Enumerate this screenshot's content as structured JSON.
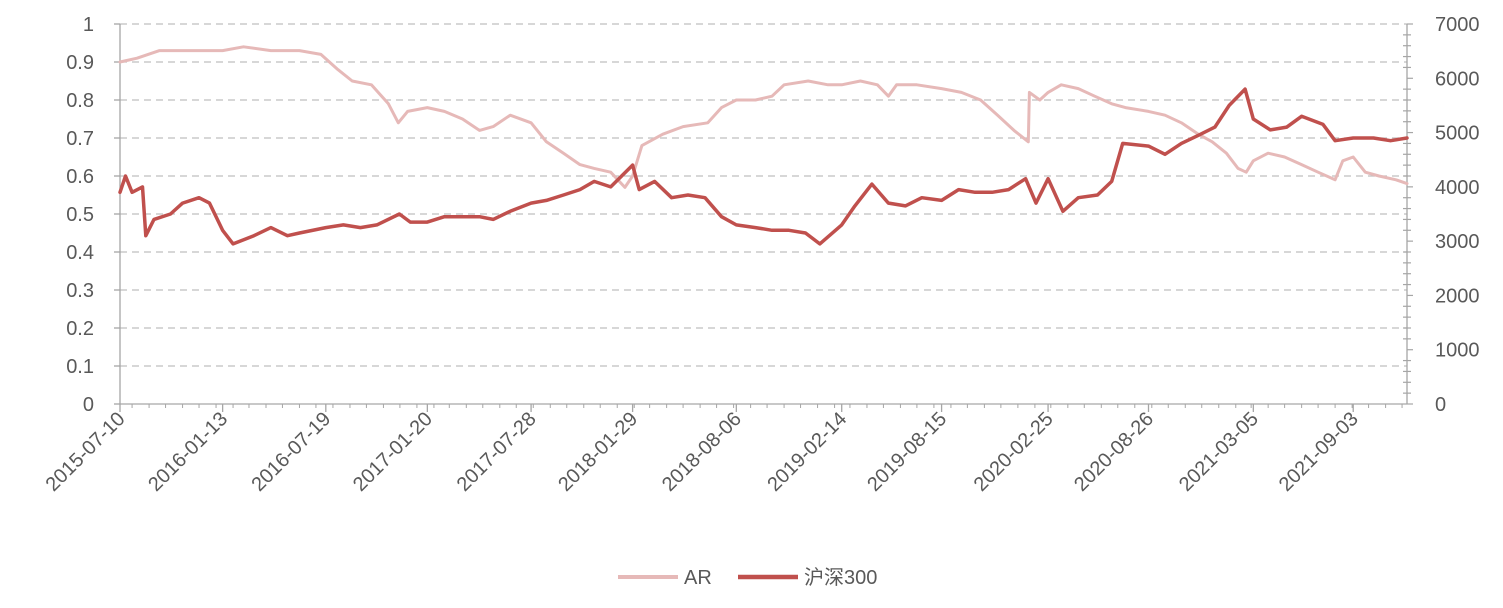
{
  "chart_data": {
    "type": "line",
    "title": "",
    "x_tick_labels": [
      "2015-07-10",
      "2016-01-13",
      "2016-07-19",
      "2017-01-20",
      "2017-07-28",
      "2018-01-29",
      "2018-08-06",
      "2019-02-14",
      "2019-08-15",
      "2020-02-25",
      "2020-08-26",
      "2021-03-05",
      "2021-09-03"
    ],
    "x_range": [
      "2015-07-10",
      "2021-12-10"
    ],
    "y_left": {
      "range": [
        0,
        1
      ],
      "ticks": [
        "0",
        "0.1",
        "0.2",
        "0.3",
        "0.4",
        "0.5",
        "0.6",
        "0.7",
        "0.8",
        "0.9",
        "1"
      ]
    },
    "y_right": {
      "range": [
        0,
        7000
      ],
      "ticks": [
        "0",
        "1000",
        "2000",
        "3000",
        "4000",
        "5000",
        "6000",
        "7000"
      ]
    },
    "grid": true,
    "legend_position": "bottom",
    "series": [
      {
        "name": "AR",
        "axis": "left",
        "color": "#E6B9B8",
        "points": [
          [
            "2015-07-10",
            0.9
          ],
          [
            "2015-08-10",
            0.91
          ],
          [
            "2015-09-20",
            0.93
          ],
          [
            "2015-11-15",
            0.93
          ],
          [
            "2016-01-13",
            0.93
          ],
          [
            "2016-02-20",
            0.94
          ],
          [
            "2016-04-10",
            0.93
          ],
          [
            "2016-06-01",
            0.93
          ],
          [
            "2016-07-10",
            0.92
          ],
          [
            "2016-08-10",
            0.88
          ],
          [
            "2016-09-05",
            0.85
          ],
          [
            "2016-10-10",
            0.84
          ],
          [
            "2016-11-10",
            0.79
          ],
          [
            "2016-11-28",
            0.74
          ],
          [
            "2016-12-15",
            0.77
          ],
          [
            "2017-01-20",
            0.78
          ],
          [
            "2017-02-20",
            0.77
          ],
          [
            "2017-03-25",
            0.75
          ],
          [
            "2017-04-25",
            0.72
          ],
          [
            "2017-05-20",
            0.73
          ],
          [
            "2017-06-20",
            0.76
          ],
          [
            "2017-07-28",
            0.74
          ],
          [
            "2017-08-25",
            0.69
          ],
          [
            "2017-09-25",
            0.66
          ],
          [
            "2017-10-25",
            0.63
          ],
          [
            "2017-11-20",
            0.62
          ],
          [
            "2017-12-20",
            0.61
          ],
          [
            "2018-01-15",
            0.57
          ],
          [
            "2018-01-29",
            0.6
          ],
          [
            "2018-02-15",
            0.68
          ],
          [
            "2018-03-25",
            0.71
          ],
          [
            "2018-05-01",
            0.73
          ],
          [
            "2018-06-15",
            0.74
          ],
          [
            "2018-07-10",
            0.78
          ],
          [
            "2018-08-06",
            0.8
          ],
          [
            "2018-09-10",
            0.8
          ],
          [
            "2018-10-10",
            0.81
          ],
          [
            "2018-11-01",
            0.84
          ],
          [
            "2018-12-15",
            0.85
          ],
          [
            "2019-01-20",
            0.84
          ],
          [
            "2019-02-14",
            0.84
          ],
          [
            "2019-03-20",
            0.85
          ],
          [
            "2019-04-20",
            0.84
          ],
          [
            "2019-05-10",
            0.81
          ],
          [
            "2019-05-25",
            0.84
          ],
          [
            "2019-07-01",
            0.84
          ],
          [
            "2019-08-15",
            0.83
          ],
          [
            "2019-09-20",
            0.82
          ],
          [
            "2019-10-25",
            0.8
          ],
          [
            "2019-11-25",
            0.76
          ],
          [
            "2019-12-25",
            0.72
          ],
          [
            "2020-01-20",
            0.69
          ],
          [
            "2020-01-22",
            0.82
          ],
          [
            "2020-02-10",
            0.8
          ],
          [
            "2020-02-25",
            0.82
          ],
          [
            "2020-03-20",
            0.84
          ],
          [
            "2020-04-20",
            0.83
          ],
          [
            "2020-05-20",
            0.81
          ],
          [
            "2020-06-20",
            0.79
          ],
          [
            "2020-07-15",
            0.78
          ],
          [
            "2020-08-26",
            0.77
          ],
          [
            "2020-09-25",
            0.76
          ],
          [
            "2020-10-25",
            0.74
          ],
          [
            "2020-11-25",
            0.71
          ],
          [
            "2020-12-20",
            0.69
          ],
          [
            "2021-01-15",
            0.66
          ],
          [
            "2021-02-05",
            0.62
          ],
          [
            "2021-02-20",
            0.61
          ],
          [
            "2021-03-05",
            0.64
          ],
          [
            "2021-04-01",
            0.66
          ],
          [
            "2021-05-01",
            0.65
          ],
          [
            "2021-06-01",
            0.63
          ],
          [
            "2021-07-01",
            0.61
          ],
          [
            "2021-08-01",
            0.59
          ],
          [
            "2021-08-15",
            0.64
          ],
          [
            "2021-09-03",
            0.65
          ],
          [
            "2021-09-25",
            0.61
          ],
          [
            "2021-10-20",
            0.6
          ],
          [
            "2021-11-20",
            0.59
          ],
          [
            "2021-12-10",
            0.58
          ]
        ]
      },
      {
        "name": "沪深300",
        "axis": "right",
        "color": "#C0504D",
        "points": [
          [
            "2015-07-10",
            3900
          ],
          [
            "2015-07-20",
            4200
          ],
          [
            "2015-08-01",
            3900
          ],
          [
            "2015-08-20",
            4000
          ],
          [
            "2015-08-26",
            3100
          ],
          [
            "2015-09-10",
            3400
          ],
          [
            "2015-10-10",
            3500
          ],
          [
            "2015-11-01",
            3700
          ],
          [
            "2015-12-01",
            3800
          ],
          [
            "2015-12-20",
            3700
          ],
          [
            "2016-01-13",
            3200
          ],
          [
            "2016-02-01",
            2950
          ],
          [
            "2016-03-10",
            3100
          ],
          [
            "2016-04-10",
            3250
          ],
          [
            "2016-05-10",
            3100
          ],
          [
            "2016-06-01",
            3150
          ],
          [
            "2016-07-19",
            3250
          ],
          [
            "2016-08-20",
            3300
          ],
          [
            "2016-09-20",
            3250
          ],
          [
            "2016-10-20",
            3300
          ],
          [
            "2016-11-30",
            3500
          ],
          [
            "2016-12-20",
            3350
          ],
          [
            "2017-01-20",
            3350
          ],
          [
            "2017-02-20",
            3450
          ],
          [
            "2017-03-20",
            3450
          ],
          [
            "2017-04-25",
            3450
          ],
          [
            "2017-05-20",
            3400
          ],
          [
            "2017-06-20",
            3550
          ],
          [
            "2017-07-28",
            3700
          ],
          [
            "2017-08-25",
            3750
          ],
          [
            "2017-09-25",
            3850
          ],
          [
            "2017-10-25",
            3950
          ],
          [
            "2017-11-20",
            4100
          ],
          [
            "2017-12-20",
            4000
          ],
          [
            "2018-01-29",
            4400
          ],
          [
            "2018-02-10",
            3950
          ],
          [
            "2018-03-10",
            4100
          ],
          [
            "2018-04-10",
            3800
          ],
          [
            "2018-05-10",
            3850
          ],
          [
            "2018-06-10",
            3800
          ],
          [
            "2018-07-10",
            3450
          ],
          [
            "2018-08-06",
            3300
          ],
          [
            "2018-09-10",
            3250
          ],
          [
            "2018-10-10",
            3200
          ],
          [
            "2018-11-10",
            3200
          ],
          [
            "2018-12-10",
            3150
          ],
          [
            "2019-01-05",
            2950
          ],
          [
            "2019-02-14",
            3300
          ],
          [
            "2019-03-10",
            3650
          ],
          [
            "2019-04-10",
            4050
          ],
          [
            "2019-05-10",
            3700
          ],
          [
            "2019-06-10",
            3650
          ],
          [
            "2019-07-10",
            3800
          ],
          [
            "2019-08-15",
            3750
          ],
          [
            "2019-09-15",
            3950
          ],
          [
            "2019-10-15",
            3900
          ],
          [
            "2019-11-15",
            3900
          ],
          [
            "2019-12-15",
            3950
          ],
          [
            "2020-01-15",
            4150
          ],
          [
            "2020-02-03",
            3700
          ],
          [
            "2020-02-25",
            4150
          ],
          [
            "2020-03-23",
            3550
          ],
          [
            "2020-04-20",
            3800
          ],
          [
            "2020-05-25",
            3850
          ],
          [
            "2020-06-20",
            4100
          ],
          [
            "2020-07-10",
            4800
          ],
          [
            "2020-08-26",
            4750
          ],
          [
            "2020-09-25",
            4600
          ],
          [
            "2020-10-25",
            4800
          ],
          [
            "2020-11-25",
            4950
          ],
          [
            "2020-12-25",
            5100
          ],
          [
            "2021-01-20",
            5500
          ],
          [
            "2021-02-18",
            5800
          ],
          [
            "2021-03-05",
            5250
          ],
          [
            "2021-04-05",
            5050
          ],
          [
            "2021-05-05",
            5100
          ],
          [
            "2021-06-01",
            5300
          ],
          [
            "2021-07-10",
            5150
          ],
          [
            "2021-08-01",
            4850
          ],
          [
            "2021-09-03",
            4900
          ],
          [
            "2021-10-10",
            4900
          ],
          [
            "2021-11-10",
            4850
          ],
          [
            "2021-12-10",
            4900
          ]
        ]
      }
    ]
  }
}
